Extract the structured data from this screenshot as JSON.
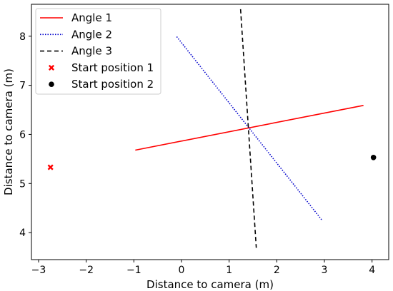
{
  "chart_data": {
    "type": "line",
    "xlabel": "Distance to camera (m)",
    "ylabel": "Distance to camera (m)",
    "xlim": [
      -3.15,
      4.35
    ],
    "ylim": [
      3.45,
      8.65
    ],
    "xticks": [
      -3,
      -2,
      -1,
      0,
      1,
      2,
      3,
      4
    ],
    "yticks": [
      4,
      5,
      6,
      7,
      8
    ],
    "grid": false,
    "legend_position": "upper-left",
    "series": [
      {
        "name": "Angle 1",
        "kind": "line",
        "style": "solid",
        "color": "#ff0000",
        "x": [
          -0.97,
          3.82
        ],
        "y": [
          5.68,
          6.59
        ]
      },
      {
        "name": "Angle 2",
        "kind": "line",
        "style": "dotted",
        "color": "#0000cc",
        "x": [
          -0.1,
          2.96
        ],
        "y": [
          7.99,
          4.24
        ]
      },
      {
        "name": "Angle 3",
        "kind": "line",
        "style": "dashed",
        "color": "#000000",
        "x": [
          1.24,
          1.57
        ],
        "y": [
          8.55,
          3.69
        ]
      },
      {
        "name": "Start position 1",
        "kind": "marker",
        "marker": "x",
        "color": "#ff0000",
        "x": [
          -2.75
        ],
        "y": [
          5.33
        ]
      },
      {
        "name": "Start position 2",
        "kind": "marker",
        "marker": "o",
        "color": "#000000",
        "x": [
          4.03
        ],
        "y": [
          5.53
        ]
      }
    ]
  }
}
